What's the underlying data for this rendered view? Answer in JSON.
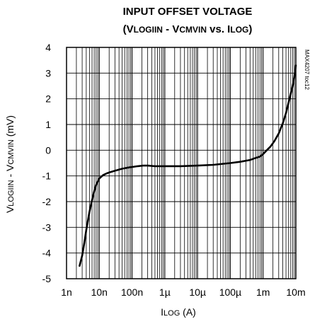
{
  "chart_data": {
    "type": "line",
    "title_line1": "INPUT OFFSET VOLTAGE",
    "title_line2": {
      "open": "(V",
      "sub1": "LOGIIN",
      "mid": " - V",
      "sub2": "CMVIN",
      "vs": " vs. I",
      "sub3": "LOG",
      "close": ")"
    },
    "ylabel": {
      "v1": "V",
      "sub1": "LOGIIN",
      "mid": " - V",
      "sub2": "CMVIN",
      "unit": " (mV)"
    },
    "xlabel": {
      "i": "I",
      "sub": "LOG",
      "unit": " (A)"
    },
    "watermark": "MAX4207 toc12",
    "x_scale": "log",
    "xlim": [
      1e-09,
      0.01
    ],
    "ylim": [
      -5,
      4
    ],
    "grid": true,
    "x_ticks": [
      {
        "value": 1e-09,
        "label": "1n"
      },
      {
        "value": 1e-08,
        "label": "10n"
      },
      {
        "value": 1e-07,
        "label": "100n"
      },
      {
        "value": 1e-06,
        "label": "1µ"
      },
      {
        "value": 1e-05,
        "label": "10µ"
      },
      {
        "value": 0.0001,
        "label": "100µ"
      },
      {
        "value": 0.001,
        "label": "1m"
      },
      {
        "value": 0.01,
        "label": "10m"
      }
    ],
    "y_ticks": [
      {
        "value": 4,
        "label": "4"
      },
      {
        "value": 3,
        "label": "3"
      },
      {
        "value": 2,
        "label": "2"
      },
      {
        "value": 1,
        "label": "1"
      },
      {
        "value": 0,
        "label": "0"
      },
      {
        "value": -1,
        "label": "-1"
      },
      {
        "value": -2,
        "label": "-2"
      },
      {
        "value": -3,
        "label": "-3"
      },
      {
        "value": -4,
        "label": "-4"
      },
      {
        "value": -5,
        "label": "-5"
      }
    ],
    "series": [
      {
        "x": [
          2.5e-09,
          3e-09,
          3.5e-09,
          4e-09,
          5e-09,
          6e-09,
          7e-09,
          8e-09,
          1e-08,
          1.3e-08,
          1.7e-08,
          2.2e-08,
          3e-08,
          5e-08,
          8e-08,
          1.5e-07,
          2.2e-07,
          3e-07,
          5e-07,
          1e-06,
          3e-06,
          1e-05,
          3e-05,
          0.0001,
          0.0002,
          0.0004,
          0.0006,
          0.0008,
          0.001,
          0.0013,
          0.0017,
          0.0022,
          0.003,
          0.004,
          0.005,
          0.006,
          0.007,
          0.008,
          0.009,
          0.01
        ],
        "y": [
          -4.5,
          -4.1,
          -3.6,
          -3.1,
          -2.4,
          -1.95,
          -1.6,
          -1.35,
          -1.1,
          -0.97,
          -0.9,
          -0.85,
          -0.8,
          -0.72,
          -0.67,
          -0.62,
          -0.6,
          -0.6,
          -0.62,
          -0.62,
          -0.62,
          -0.6,
          -0.57,
          -0.5,
          -0.45,
          -0.38,
          -0.3,
          -0.25,
          -0.15,
          0.0,
          0.15,
          0.35,
          0.65,
          1.05,
          1.45,
          1.85,
          2.2,
          2.5,
          2.85,
          3.3
        ]
      }
    ]
  }
}
